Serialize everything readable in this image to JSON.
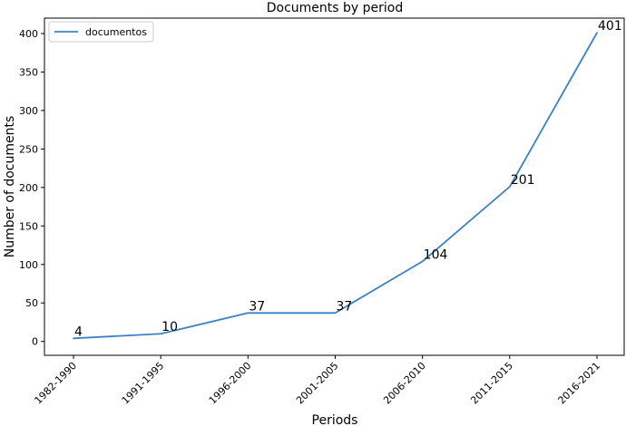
{
  "chart_data": {
    "type": "line",
    "title": "Documents by period",
    "xlabel": "Periods",
    "ylabel": "Number of documents",
    "categories": [
      "1982-1990",
      "1991-1995",
      "1996-2000",
      "2001-2005",
      "2006-2010",
      "2011-2015",
      "2016-2021"
    ],
    "series": [
      {
        "name": "documentos",
        "values": [
          4,
          10,
          37,
          37,
          104,
          201,
          401
        ],
        "color": "#3b82c4"
      }
    ],
    "data_labels": [
      "4",
      "10",
      "37",
      "37",
      "104",
      "201",
      "401"
    ],
    "ylim": [
      -18,
      420
    ],
    "yticks": [
      0,
      50,
      100,
      150,
      200,
      250,
      300,
      350,
      400
    ],
    "grid": false,
    "legend_position": "top-left"
  }
}
